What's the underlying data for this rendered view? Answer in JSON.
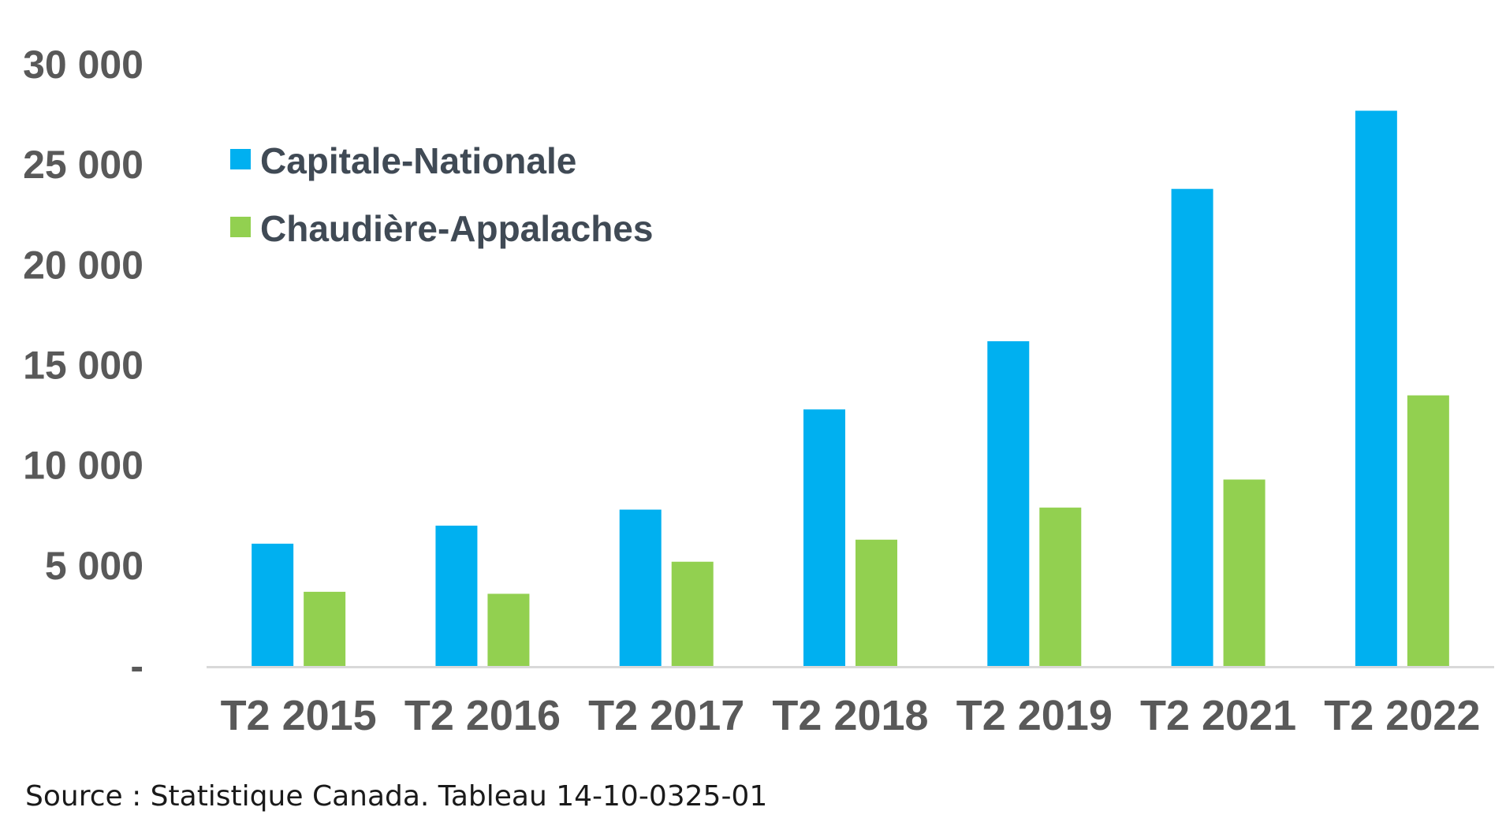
{
  "chart_data": {
    "type": "bar",
    "categories": [
      "T2 2015",
      "T2 2016",
      "T2 2017",
      "T2 2018",
      "T2 2019",
      "T2 2021",
      "T2 2022"
    ],
    "series": [
      {
        "name": "Capitale-Nationale",
        "color": "#00b0f0",
        "values": [
          6100,
          7000,
          7800,
          12800,
          16200,
          23800,
          27700
        ]
      },
      {
        "name": "Chaudière-Appalaches",
        "color": "#92d050",
        "values": [
          3700,
          3600,
          5200,
          6300,
          7900,
          9300,
          13500
        ]
      }
    ],
    "ylim": [
      0,
      30000
    ],
    "yticks": [
      0,
      5000,
      10000,
      15000,
      20000,
      25000,
      30000
    ],
    "ytick_labels": [
      "-",
      "5 000",
      "10 000",
      "15 000",
      "20 000",
      "25 000",
      "30 000"
    ],
    "grid": false,
    "legend_position": "top-left",
    "source": "Source : Statistique Canada. Tableau 14-10-0325-01",
    "axis_color": "#d9d9d9"
  }
}
